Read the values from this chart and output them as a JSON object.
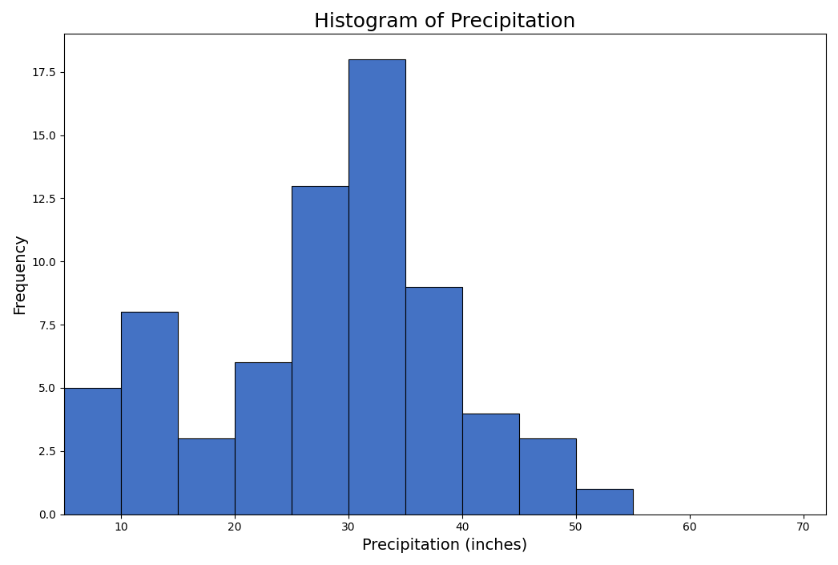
{
  "title": "Histogram of Precipitation",
  "xlabel": "Precipitation (inches)",
  "ylabel": "Frequency",
  "bin_edges": [
    5,
    10,
    15,
    20,
    25,
    30,
    35,
    40,
    45,
    50,
    55,
    60,
    65,
    70
  ],
  "frequencies": [
    5,
    8,
    3,
    6,
    13,
    18,
    9,
    4,
    3,
    1,
    0,
    0,
    0
  ],
  "bar_color": "#4472C4",
  "edge_color": "black",
  "xlim": [
    5,
    72
  ],
  "ylim": [
    0,
    19
  ],
  "xticks": [
    10,
    20,
    30,
    40,
    50,
    60,
    70
  ],
  "yticks": [
    0.0,
    2.5,
    5.0,
    7.5,
    10.0,
    12.5,
    15.0,
    17.5
  ],
  "title_fontsize": 18,
  "axis_label_fontsize": 14
}
